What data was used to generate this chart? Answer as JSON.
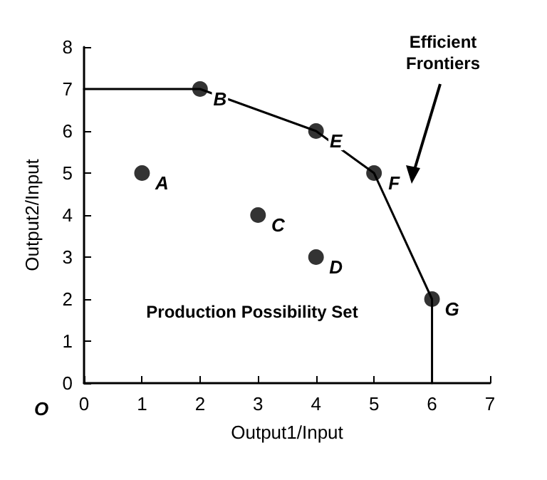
{
  "chart_data": {
    "type": "scatter",
    "xlabel": "Output1/Input",
    "ylabel": "Output2/Input",
    "xlim": [
      0,
      7
    ],
    "ylim": [
      0,
      8
    ],
    "xticks": [
      0,
      1,
      2,
      3,
      4,
      5,
      6,
      7
    ],
    "yticks": [
      0,
      1,
      2,
      3,
      4,
      5,
      6,
      7,
      8
    ],
    "grid": false,
    "marker": "circle",
    "series": [
      {
        "type": "line",
        "color": "#000000",
        "x": [
          0,
          2,
          4,
          5,
          6,
          6
        ],
        "values": [
          7,
          7,
          6,
          5,
          2,
          0
        ],
        "marker": "none",
        "line_style": "solid"
      },
      {
        "color": "#000000",
        "x": [
          1,
          2,
          3,
          4,
          4,
          5,
          6
        ],
        "values": [
          5,
          7,
          4,
          3,
          6,
          5,
          2
        ]
      }
    ],
    "annotations": [
      {
        "text": "A",
        "x": 1,
        "y": 5
      },
      {
        "text": "B",
        "x": 2,
        "y": 7
      },
      {
        "text": "C",
        "x": 3,
        "y": 4
      },
      {
        "text": "D",
        "x": 4,
        "y": 3
      },
      {
        "text": "E",
        "x": 4,
        "y": 6
      },
      {
        "text": "F",
        "x": 5,
        "y": 5
      },
      {
        "text": "G",
        "x": 6,
        "y": 2
      },
      "Efficient Frontiers",
      "Production Possibility Set",
      "O"
    ]
  }
}
